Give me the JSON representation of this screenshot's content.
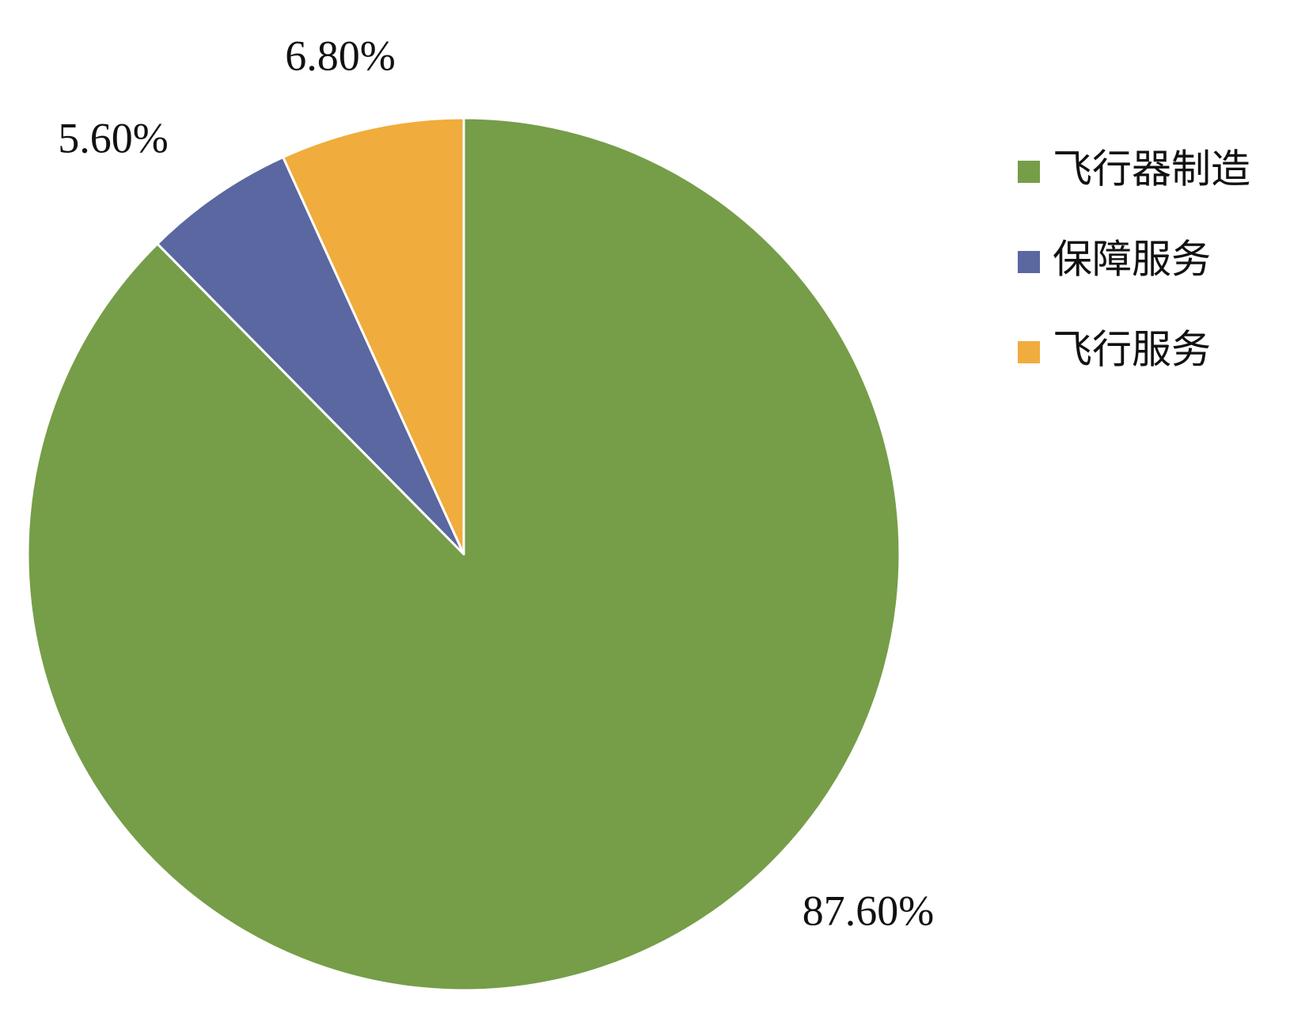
{
  "chart_data": {
    "type": "pie",
    "categories": [
      "飞行器制造",
      "保障服务",
      "飞行服务"
    ],
    "values": [
      87.6,
      5.6,
      6.8
    ],
    "value_labels": [
      "87.60%",
      "5.60%",
      "6.80%"
    ],
    "colors": [
      "#769d48",
      "#5a67a0",
      "#f0ac3c"
    ],
    "legend": "right"
  }
}
